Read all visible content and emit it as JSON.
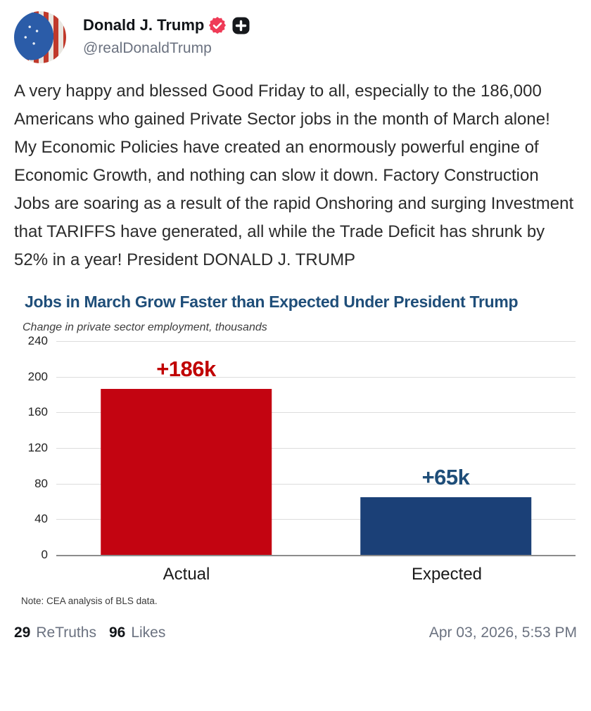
{
  "header": {
    "display_name": "Donald J. Trump",
    "handle": "@realDonaldTrump",
    "icons": {
      "verified_badge": "seal-check-icon",
      "plus_badge": "plus-square-icon"
    },
    "verified_color": "#ef3b57",
    "plus_badge_color": "#16181c"
  },
  "post": {
    "text": "A very happy and blessed Good Friday to all, especially to the 186,000 Americans who gained Private Sector jobs in the month of March alone! My Economic Policies have created an enormously powerful engine of Economic Growth, and nothing can slow it down. Factory Construction Jobs are soaring as a result of the rapid Onshoring and surging Investment that TARIFFS have generated, all while the Trade Deficit has shrunk by 52% in a year! President DONALD J. TRUMP"
  },
  "chart_data": {
    "type": "bar",
    "title": "Jobs in March Grow Faster than Expected Under President Trump",
    "subtitle": "Change in private sector employment,  thousands",
    "categories": [
      "Actual",
      "Expected"
    ],
    "values": [
      186,
      65
    ],
    "bar_labels": [
      "+186k",
      "+65k"
    ],
    "bar_colors": [
      "#c30411",
      "#1b4077"
    ],
    "label_colors": [
      "#c00000",
      "#1f4e79"
    ],
    "ylim": [
      0,
      240
    ],
    "yticks": [
      240,
      200,
      160,
      120,
      80,
      40,
      0
    ],
    "grid": true,
    "legend": "none",
    "note": "Note: CEA analysis of BLS data.",
    "title_color": "#1f4e79"
  },
  "footer": {
    "retruths_count": "29",
    "retruths_label": "ReTruths",
    "likes_count": "96",
    "likes_label": "Likes",
    "timestamp": "Apr 03, 2026, 5:53 PM"
  }
}
